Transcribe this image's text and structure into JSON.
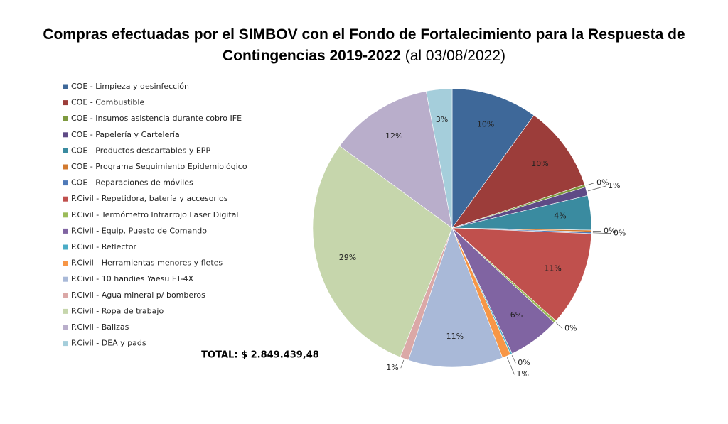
{
  "chart_data": {
    "type": "pie",
    "title": "Compras efectuadas por el SIMBOV con el Fondo de Fortalecimiento para la Respuesta de Contingencias 2019-2022",
    "subtitle": "(al 03/08/2022)",
    "total_label": "TOTAL: $  2.849.439,48",
    "legend": "left",
    "categories": [
      "COE - Limpieza y desinfección",
      "COE - Combustible",
      "COE - Insumos asistencia durante cobro IFE",
      "COE - Papelería y Cartelería",
      "COE - Productos descartables y EPP",
      "COE - Programa Seguimiento Epidemiológico",
      "COE - Reparaciones de móviles",
      "P.Civil - Repetidora, batería y accesorios",
      "P.Civil - Termómetro Infrarrojo Laser Digital",
      "P.Civil - Equip. Puesto de Comando",
      "P.Civil - Reflector",
      "P.Civil - Herramientas menores y fletes",
      "P.Civil - 10 handies Yaesu FT-4X",
      "P.Civil - Agua mineral p/ bomberos",
      "P.Civil - Ropa de trabajo",
      "P.Civil - Balizas",
      "P.Civil - DEA y pads"
    ],
    "values": [
      10,
      10,
      0.3,
      1,
      4,
      0.2,
      0.2,
      11,
      0.3,
      6,
      0.2,
      1,
      11,
      1,
      29,
      12,
      3
    ],
    "value_labels": [
      "10%",
      "10%",
      "0%",
      "1%",
      "4%",
      "0%",
      "0%",
      "11%",
      "0%",
      "6%",
      "0%",
      "1%",
      "11%",
      "1%",
      "29%",
      "12%",
      "3%"
    ],
    "colors": [
      "#3e6899",
      "#9c3d3a",
      "#7e9a3f",
      "#5f4b86",
      "#3a8ba0",
      "#d27a2f",
      "#4f7ab8",
      "#c0504d",
      "#9bbb59",
      "#8064a2",
      "#4bacc6",
      "#f79646",
      "#a9b9d8",
      "#dba8a7",
      "#c6d6ac",
      "#b9aecb",
      "#a5cedb"
    ]
  }
}
